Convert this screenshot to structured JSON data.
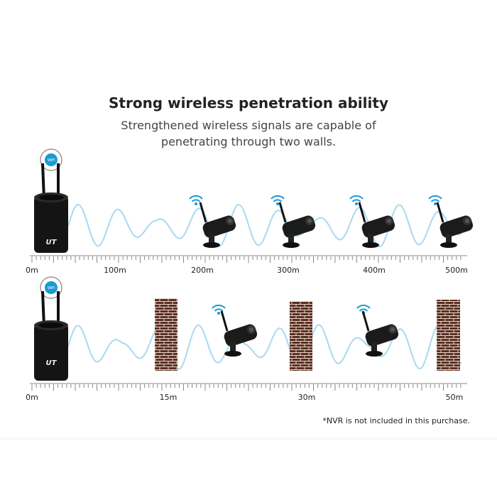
{
  "header": {
    "title": "Strong wireless penetration ability",
    "subtitle_lines": [
      "Strengthened wireless signals are capable of",
      "penetrating through two walls."
    ]
  },
  "badge": "WiFi",
  "nvr_logo": "UT",
  "panels": [
    {
      "labels": [
        "0m",
        "100m",
        "200m",
        "300m",
        "400m",
        "500m"
      ]
    },
    {
      "labels": [
        "0m",
        "15m",
        "30m",
        "50m"
      ]
    }
  ],
  "note": "*NVR is not included in this purchase."
}
